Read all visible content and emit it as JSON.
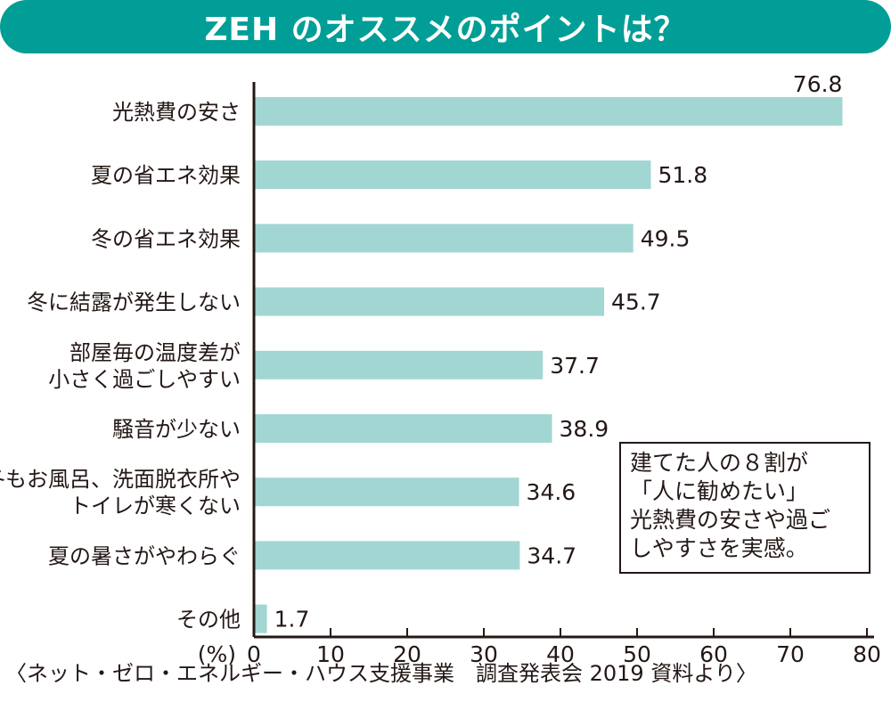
{
  "title": "ZEH のオススメのポイントは？",
  "colors": {
    "accent": "#009e96",
    "bar": "#a2d6d3",
    "text": "#231815"
  },
  "chart_data": {
    "type": "bar",
    "orientation": "horizontal",
    "title": "ZEH のオススメのポイントは？",
    "xlabel": "(%)",
    "xlim": [
      0,
      80
    ],
    "ticks": [
      "0",
      "10",
      "20",
      "30",
      "40",
      "50",
      "60",
      "70",
      "80"
    ],
    "categories": [
      [
        "光熱費の安さ"
      ],
      [
        "夏の省エネ効果"
      ],
      [
        "冬の省エネ効果"
      ],
      [
        "冬に結露が発生しない"
      ],
      [
        "部屋毎の温度差が",
        "小さく過ごしやすい"
      ],
      [
        "騒音が少ない"
      ],
      [
        "冬もお風呂、洗面脱衣所や",
        "トイレが寒くない"
      ],
      [
        "夏の暑さがやわらぐ"
      ],
      [
        "その他"
      ]
    ],
    "values": [
      76.8,
      51.8,
      49.5,
      45.7,
      37.7,
      38.9,
      34.6,
      34.7,
      1.7
    ],
    "value_labels": [
      "76.8",
      "51.8",
      "49.5",
      "45.7",
      "37.7",
      "38.9",
      "34.6",
      "34.7",
      "1.7"
    ],
    "grid": false
  },
  "note": {
    "lines": [
      "建てた人の８割が",
      "「人に勧めたい」",
      "光熱費の安さや過ご",
      "しやすさを実感。"
    ]
  },
  "source": "〈ネット・ゼロ・エネルギー・ハウス支援事業　調査発表会 2019 資料より〉"
}
